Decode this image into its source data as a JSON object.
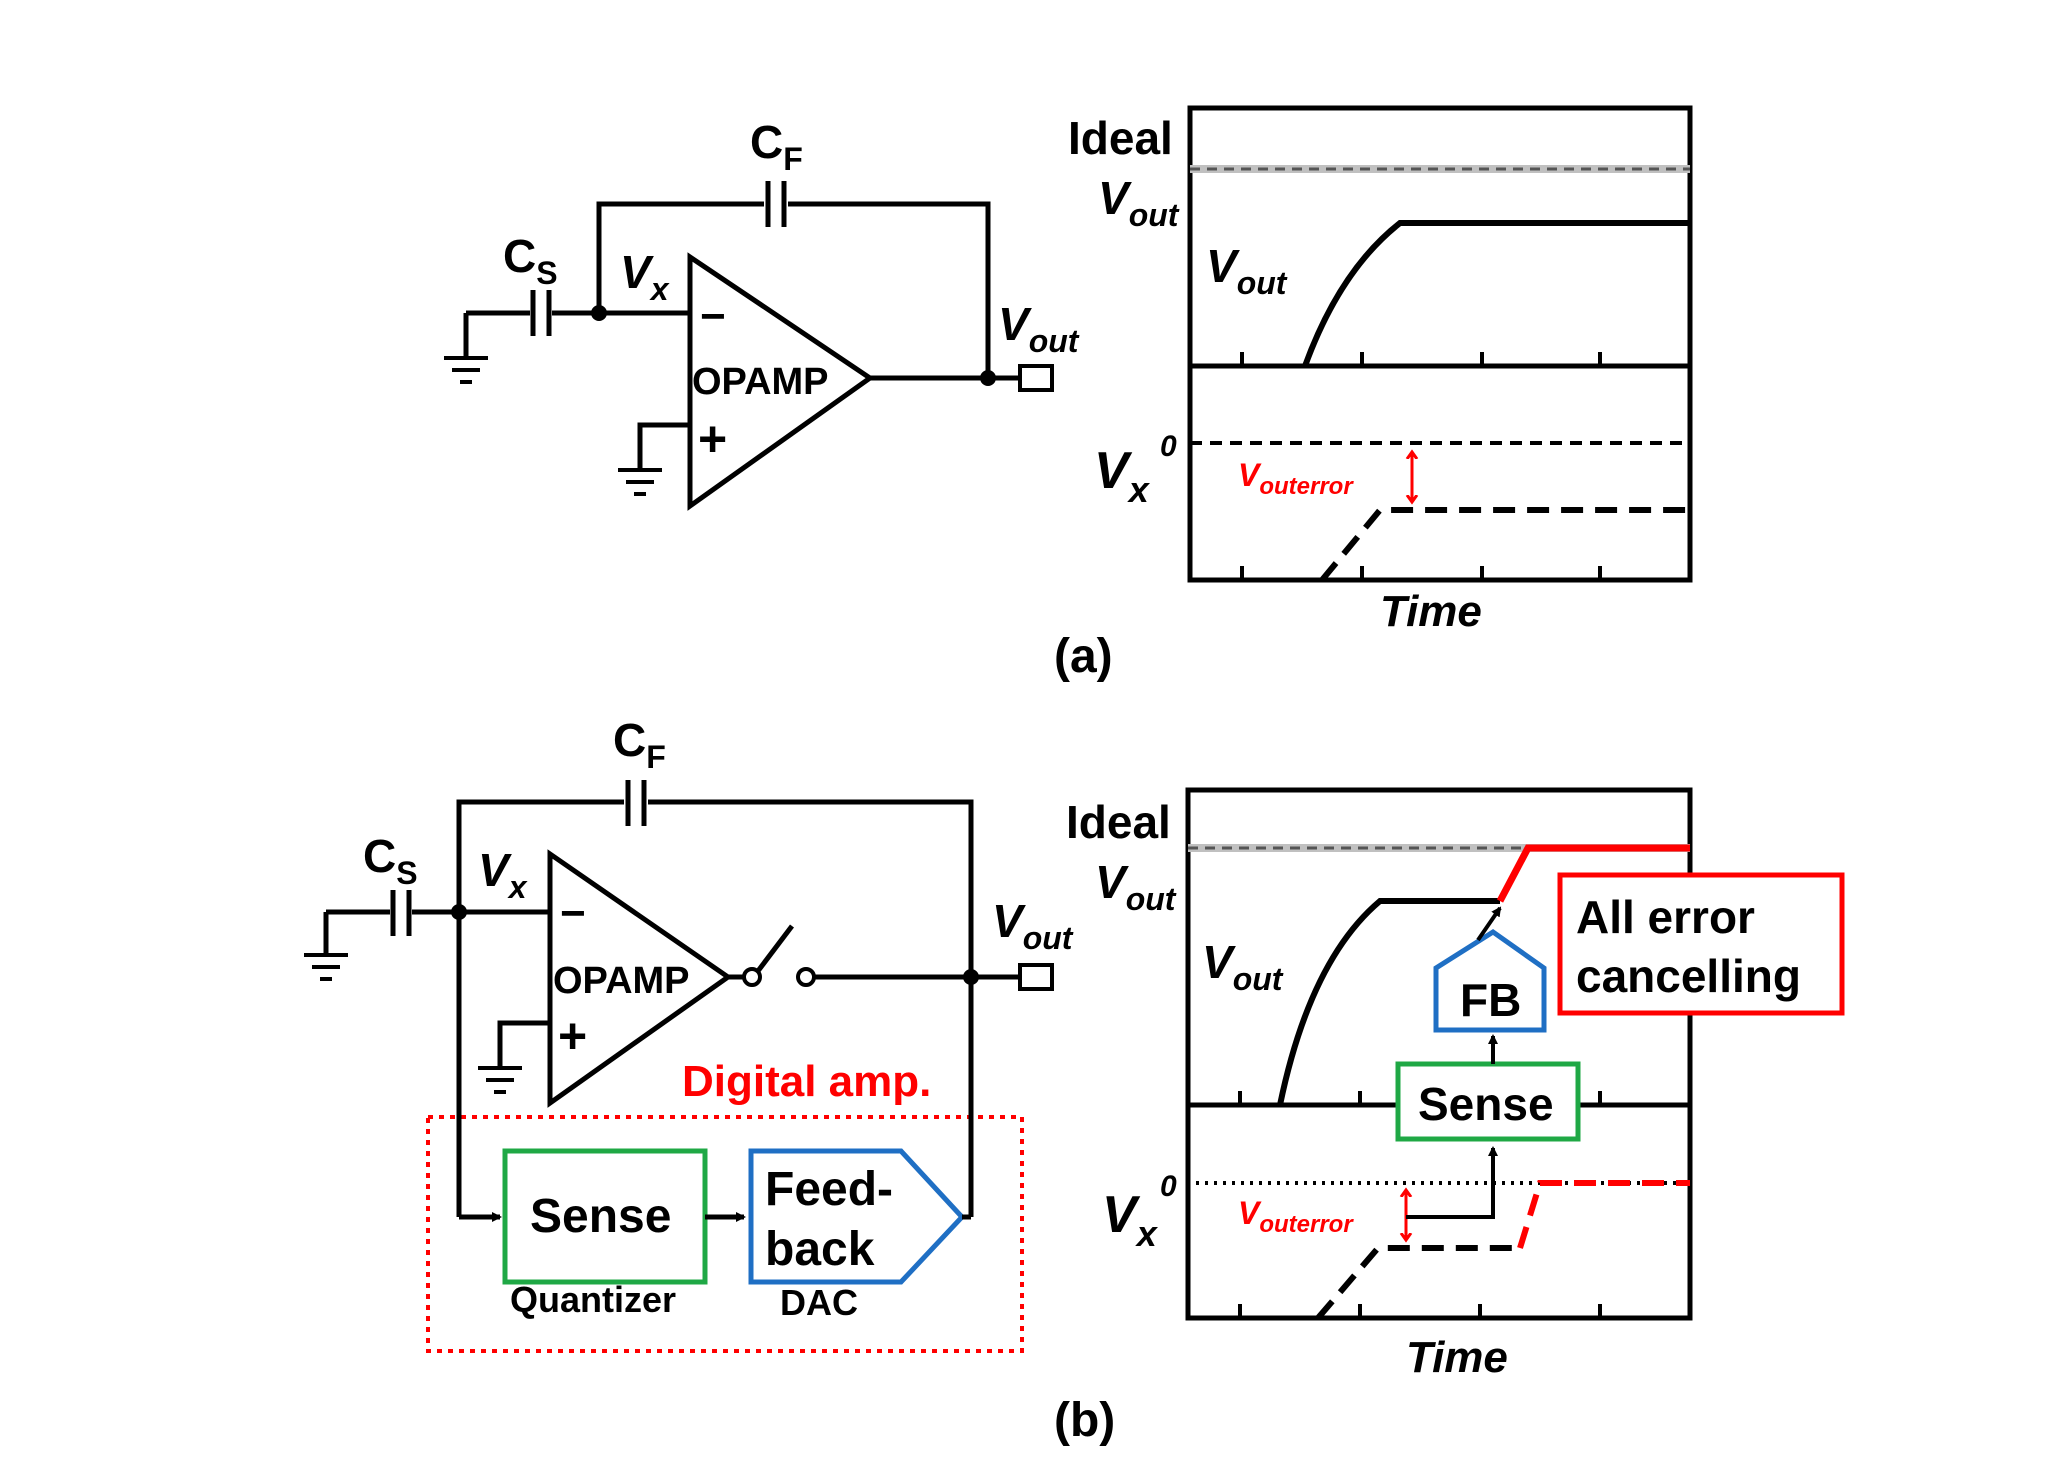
{
  "panel_a": {
    "caption": "(a)",
    "circuit": {
      "cf_label": "C",
      "cf_sub": "F",
      "cs_label": "C",
      "cs_sub": "S",
      "vx_label": "V",
      "vx_sub": "x",
      "vout_label": "V",
      "vout_sub": "out",
      "opamp_label": "OPAMP",
      "minus": "−",
      "plus": "+"
    },
    "plot": {
      "ideal_label": "Ideal",
      "ideal_vout_label": "V",
      "ideal_vout_sub": "out",
      "vout_trace_label": "V",
      "vout_trace_sub": "out",
      "vx_label": "V",
      "vx_sub": "x",
      "zero_label": "0",
      "error_label": "V",
      "error_sub": "outerror",
      "time_label": "Time"
    }
  },
  "panel_b": {
    "caption": "(b)",
    "circuit": {
      "cf_label": "C",
      "cf_sub": "F",
      "cs_label": "C",
      "cs_sub": "S",
      "vx_label": "V",
      "vx_sub": "x",
      "vout_label": "V",
      "vout_sub": "out",
      "opamp_label": "OPAMP",
      "minus": "−",
      "plus": "+",
      "digital_amp_label": "Digital amp.",
      "sense_label": "Sense",
      "quantizer_label": "Quantizer",
      "feedback_line1": "Feed-",
      "feedback_line2": "back",
      "dac_label": "DAC"
    },
    "plot": {
      "ideal_label": "Ideal",
      "ideal_vout_label": "V",
      "ideal_vout_sub": "out",
      "vout_trace_label": "V",
      "vout_trace_sub": "out",
      "vx_label": "V",
      "vx_sub": "x",
      "zero_label": "0",
      "error_label": "V",
      "error_sub": "outerror",
      "time_label": "Time",
      "fb_label": "FB",
      "sense_label": "Sense",
      "cancel_line1": "All error",
      "cancel_line2": "cancelling"
    }
  },
  "colors": {
    "error_red": "#ff0000",
    "sense_green": "#1fa845",
    "feedback_blue": "#1f6fc4",
    "ideal_gray": "#b0b0b0"
  }
}
